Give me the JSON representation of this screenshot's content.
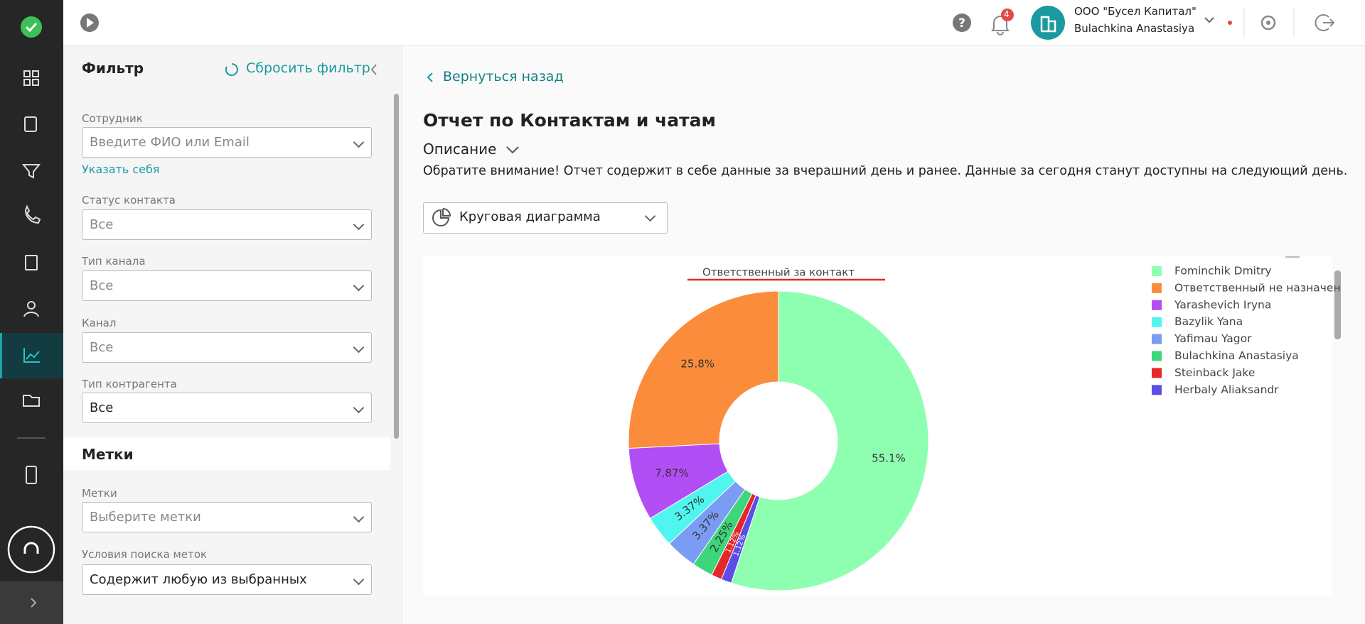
{
  "header": {
    "notifications": "4",
    "org": "ООО \"Бусел Капитал\"",
    "user": "Bulachkina Anastasiya"
  },
  "filter": {
    "title": "Фильтр",
    "reset": "Сбросить фильтр",
    "self_link": "Указать себя",
    "tags_title": "Метки",
    "fields": [
      {
        "label": "Сотрудник",
        "placeholder": "Введите ФИО или Email"
      },
      {
        "label": "Статус контакта",
        "placeholder": "Все"
      },
      {
        "label": "Тип канала",
        "placeholder": "Все"
      },
      {
        "label": "Канал",
        "placeholder": "Все"
      },
      {
        "label": "Тип контрагента",
        "value": "Все"
      }
    ],
    "tag_fields": [
      {
        "label": "Метки",
        "placeholder": "Выберите метки"
      },
      {
        "label": "Условия поиска меток",
        "value": "Содержит любую из выбранных"
      }
    ]
  },
  "content": {
    "back": "Вернуться назад",
    "title": "Отчет по Контактам и чатам",
    "description_toggle": "Описание",
    "notice": "Обратите внимание! Отчет содержит в себе данные за вчерашний день и ранее. Данные за сегодня станут доступны на следующий день.",
    "chart_type": "Круговая диаграмма"
  },
  "chart_data": {
    "type": "pie",
    "title": "Ответственный за контакт",
    "hole": true,
    "direction": "counterclockwise",
    "categories": [
      "Fominchik Dmitry",
      "Ответственный не назначен",
      "Yarashevich Iryna",
      "Bazylik Yana",
      "Yafimau Yagor",
      "Bulachkina Anastasiya",
      "Steinback Jake",
      "Herbaly Aliaksandr"
    ],
    "values": [
      55.1,
      25.8,
      7.87,
      3.37,
      3.37,
      2.25,
      1.12,
      1.12
    ],
    "value_labels": [
      "55.1%",
      "25.8%",
      "7.87%",
      "3.37%",
      "3.37%",
      "2.25%",
      "1.12%",
      "1.12%"
    ],
    "colors": [
      "#8effb0",
      "#fb8c3c",
      "#b14ef5",
      "#4ff5ee",
      "#7b9cf5",
      "#3ed67a",
      "#e5262a",
      "#5b4de8"
    ],
    "legend": "top-right"
  }
}
